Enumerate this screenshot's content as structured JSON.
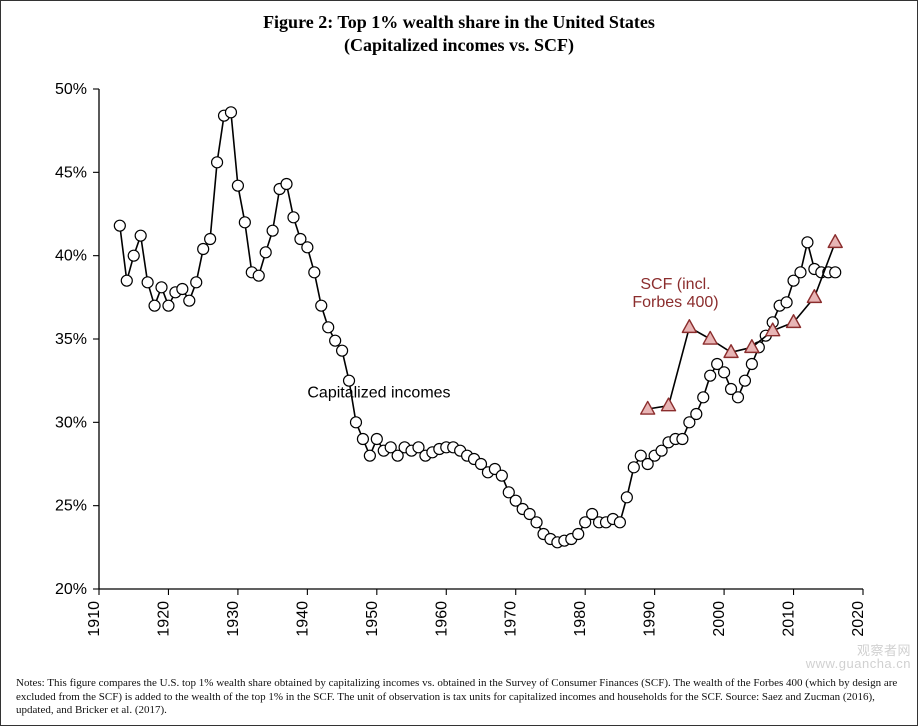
{
  "title_line1": "Figure 2: Top 1% wealth share in the United States",
  "title_line2": "(Capitalized incomes vs. SCF)",
  "notes_text": "Notes: This figure compares the U.S. top 1% wealth share obtained by capitalizing incomes vs. obtained in the Survey of Consumer Finances (SCF). The wealth of the Forbes 400 (which by design are excluded from the SCF) is added to the wealth of the top 1% in the SCF. The unit of observation is tax units for capitalized incomes and households for the SCF. Source: Saez and Zucman (2016), updated, and Bricker et al. (2017).",
  "watermark_line1": "观察者网",
  "watermark_line2": "www.guancha.cn",
  "chart": {
    "type": "line",
    "background_color": "#ffffff",
    "axis_color": "#000000",
    "axis_fontsize": 16,
    "axis_font": "Arial, Helvetica, sans-serif",
    "x": {
      "min": 1910,
      "max": 2020,
      "tick_step": 10,
      "tick_rotation": -90
    },
    "y": {
      "min": 20,
      "max": 50,
      "tick_step": 5,
      "tick_suffix": "%"
    },
    "tick_length": 6,
    "series": [
      {
        "name": "Capitalized incomes",
        "label_pos": {
          "year": 1940,
          "pct": 31.5
        },
        "label_color": "#000000",
        "line_color": "#000000",
        "line_width": 1.6,
        "marker": "circle",
        "marker_radius": 5.5,
        "marker_fill": "#ffffff",
        "marker_stroke": "#000000",
        "marker_stroke_width": 1.2,
        "data": [
          [
            1913,
            41.8
          ],
          [
            1914,
            38.5
          ],
          [
            1915,
            40.0
          ],
          [
            1916,
            41.2
          ],
          [
            1917,
            38.4
          ],
          [
            1918,
            37.0
          ],
          [
            1919,
            38.1
          ],
          [
            1920,
            37.0
          ],
          [
            1921,
            37.8
          ],
          [
            1922,
            38.0
          ],
          [
            1923,
            37.3
          ],
          [
            1924,
            38.4
          ],
          [
            1925,
            40.4
          ],
          [
            1926,
            41.0
          ],
          [
            1927,
            45.6
          ],
          [
            1928,
            48.4
          ],
          [
            1929,
            48.6
          ],
          [
            1930,
            44.2
          ],
          [
            1931,
            42.0
          ],
          [
            1932,
            39.0
          ],
          [
            1933,
            38.8
          ],
          [
            1934,
            40.2
          ],
          [
            1935,
            41.5
          ],
          [
            1936,
            44.0
          ],
          [
            1937,
            44.3
          ],
          [
            1938,
            42.3
          ],
          [
            1939,
            41.0
          ],
          [
            1940,
            40.5
          ],
          [
            1941,
            39.0
          ],
          [
            1942,
            37.0
          ],
          [
            1943,
            35.7
          ],
          [
            1944,
            34.9
          ],
          [
            1945,
            34.3
          ],
          [
            1946,
            32.5
          ],
          [
            1947,
            30.0
          ],
          [
            1948,
            29.0
          ],
          [
            1949,
            28.0
          ],
          [
            1950,
            29.0
          ],
          [
            1951,
            28.3
          ],
          [
            1952,
            28.5
          ],
          [
            1953,
            28.0
          ],
          [
            1954,
            28.5
          ],
          [
            1955,
            28.3
          ],
          [
            1956,
            28.5
          ],
          [
            1957,
            28.0
          ],
          [
            1958,
            28.2
          ],
          [
            1959,
            28.4
          ],
          [
            1960,
            28.5
          ],
          [
            1961,
            28.5
          ],
          [
            1962,
            28.3
          ],
          [
            1963,
            28.0
          ],
          [
            1964,
            27.8
          ],
          [
            1965,
            27.5
          ],
          [
            1966,
            27.0
          ],
          [
            1967,
            27.2
          ],
          [
            1968,
            26.8
          ],
          [
            1969,
            25.8
          ],
          [
            1970,
            25.3
          ],
          [
            1971,
            24.8
          ],
          [
            1972,
            24.5
          ],
          [
            1973,
            24.0
          ],
          [
            1974,
            23.3
          ],
          [
            1975,
            23.0
          ],
          [
            1976,
            22.8
          ],
          [
            1977,
            22.9
          ],
          [
            1978,
            23.0
          ],
          [
            1979,
            23.3
          ],
          [
            1980,
            24.0
          ],
          [
            1981,
            24.5
          ],
          [
            1982,
            24.0
          ],
          [
            1983,
            24.0
          ],
          [
            1984,
            24.2
          ],
          [
            1985,
            24.0
          ],
          [
            1986,
            25.5
          ],
          [
            1987,
            27.3
          ],
          [
            1988,
            28.0
          ],
          [
            1989,
            27.5
          ],
          [
            1990,
            28.0
          ],
          [
            1991,
            28.3
          ],
          [
            1992,
            28.8
          ],
          [
            1993,
            29.0
          ],
          [
            1994,
            29.0
          ],
          [
            1995,
            30.0
          ],
          [
            1996,
            30.5
          ],
          [
            1997,
            31.5
          ],
          [
            1998,
            32.8
          ],
          [
            1999,
            33.5
          ],
          [
            2000,
            33.0
          ],
          [
            2001,
            32.0
          ],
          [
            2002,
            31.5
          ],
          [
            2003,
            32.5
          ],
          [
            2004,
            33.5
          ],
          [
            2005,
            34.5
          ],
          [
            2006,
            35.2
          ],
          [
            2007,
            36.0
          ],
          [
            2008,
            37.0
          ],
          [
            2009,
            37.2
          ],
          [
            2010,
            38.5
          ],
          [
            2011,
            39.0
          ],
          [
            2012,
            40.8
          ],
          [
            2013,
            39.2
          ],
          [
            2014,
            39.0
          ],
          [
            2015,
            39.0
          ],
          [
            2016,
            39.0
          ]
        ]
      },
      {
        "name": "SCF (incl. Forbes 400)",
        "label_line1": "SCF (incl.",
        "label_line2": "Forbes 400)",
        "label_pos": {
          "year": 1993,
          "pct": 38
        },
        "label_color": "#8b2d2d",
        "line_color": "#000000",
        "line_width": 1.6,
        "marker": "triangle",
        "marker_size": 14,
        "marker_fill": "#e8b5b5",
        "marker_stroke": "#8b2d2d",
        "marker_stroke_width": 1.4,
        "data": [
          [
            1989,
            30.8
          ],
          [
            1992,
            31.0
          ],
          [
            1995,
            35.7
          ],
          [
            1998,
            35.0
          ],
          [
            2001,
            34.2
          ],
          [
            2004,
            34.5
          ],
          [
            2007,
            35.5
          ],
          [
            2010,
            36.0
          ],
          [
            2013,
            37.5
          ],
          [
            2016,
            40.8
          ]
        ]
      }
    ]
  }
}
